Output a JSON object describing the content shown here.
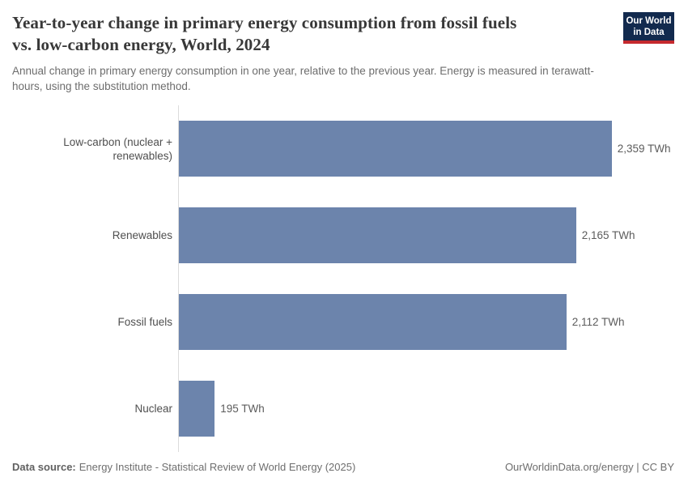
{
  "chart_data": {
    "type": "bar",
    "orientation": "horizontal",
    "title": "Year-to-year change in primary energy consumption from fossil fuels vs. low-carbon energy, World, 2024",
    "subtitle": "Annual change in primary energy consumption in one year, relative to the previous year. Energy is measured in terawatt-hours, using the substitution method.",
    "categories": [
      "Low-carbon (nuclear + renewables)",
      "Renewables",
      "Fossil fuels",
      "Nuclear"
    ],
    "values": [
      2359,
      2165,
      2112,
      195
    ],
    "value_labels": [
      "2,359 TWh",
      "2,165 TWh",
      "2,112 TWh",
      "195 TWh"
    ],
    "unit": "TWh",
    "xlim": [
      0,
      2700
    ],
    "grid": false,
    "legend": false,
    "bar_color": "#6c84ac",
    "axis_line_color": "#dcdcdc"
  },
  "header": {
    "title_line1": "Year-to-year change in primary energy consumption from fossil fuels",
    "title_line2": "vs. low-carbon energy, World, 2024",
    "logo": {
      "line1": "Our World",
      "line2": "in Data",
      "bg_color": "#122a4e",
      "accent_color": "#c5292e"
    }
  },
  "footer": {
    "source_label": "Data source:",
    "source_text": "Energy Institute - Statistical Review of World Energy (2025)",
    "credit": "OurWorldinData.org/energy | CC BY"
  },
  "colors": {
    "title": "#383838",
    "subtitle": "#6d6d6d",
    "category_label": "#4f4f4f",
    "value_label": "#5c5c5c",
    "footer": "#6e6e6e"
  }
}
